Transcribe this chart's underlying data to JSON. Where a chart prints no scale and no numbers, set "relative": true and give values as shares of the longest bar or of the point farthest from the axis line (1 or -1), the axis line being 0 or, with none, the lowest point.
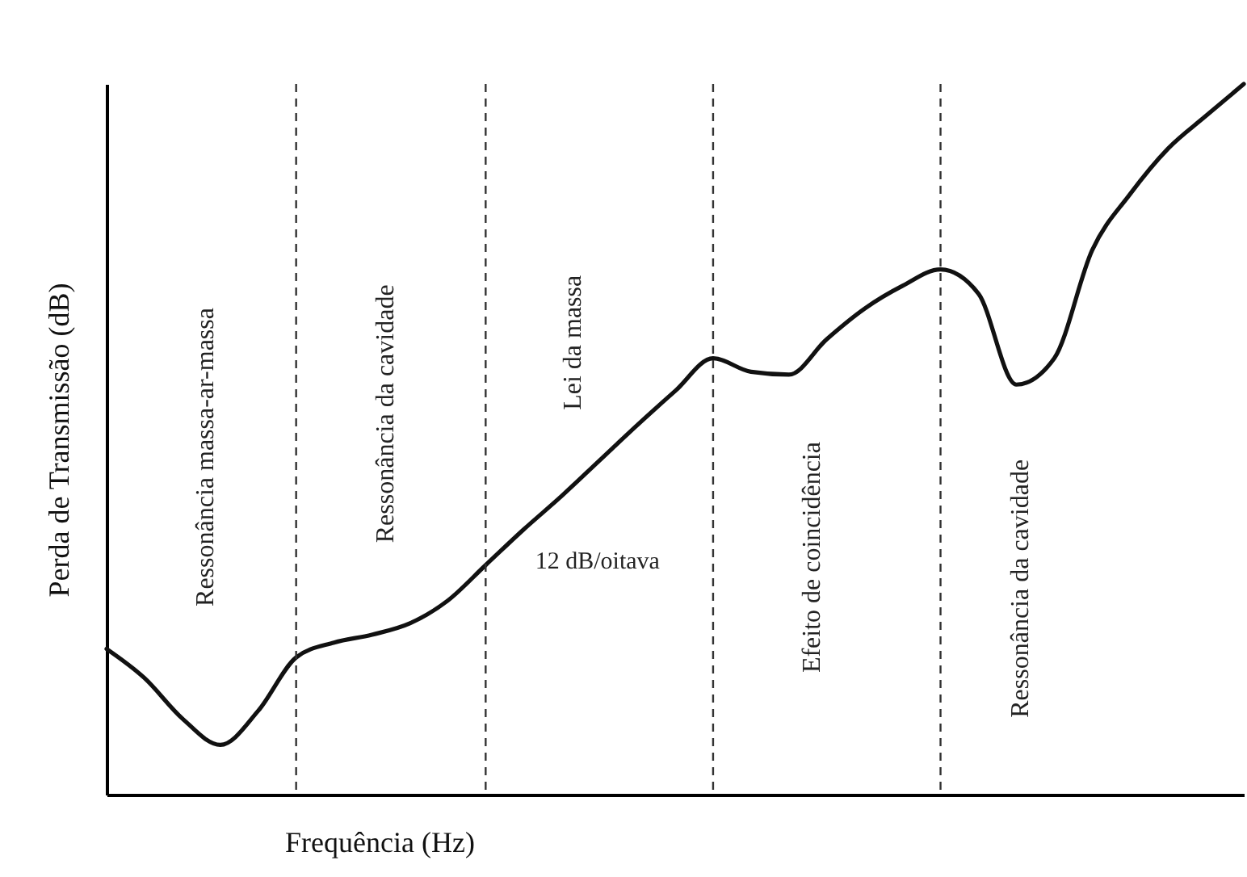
{
  "chart_data": {
    "type": "line",
    "relative": true,
    "grid": "x",
    "xlabel": "Frequência (Hz)",
    "ylabel": "Perda de Transmissão (dB)",
    "categories": [
      null,
      null,
      null,
      null,
      null,
      null,
      null,
      null,
      null,
      null,
      null,
      null,
      null,
      null,
      null,
      null,
      null,
      null,
      null,
      null,
      null,
      null,
      null,
      null,
      null,
      null,
      null,
      null,
      null,
      null,
      null
    ],
    "series": [
      {
        "color": "#111111",
        "values": [
          0.205,
          0.164,
          0.107,
          0.07,
          0.118,
          0.193,
          0.214,
          0.225,
          0.241,
          0.273,
          0.323,
          0.373,
          0.42,
          0.47,
          0.52,
          0.568,
          0.614,
          0.595,
          0.591,
          0.641,
          0.684,
          0.716,
          0.739,
          0.705,
          0.577,
          0.614,
          0.766,
          0.845,
          0.909,
          0.955,
          1.0
        ]
      }
    ],
    "annotations": [
      "Ressonância massa-ar-massa",
      "Ressonância da cavidade",
      "Lei da massa",
      "Efeito de coincidência",
      "Ressonância da cavidade",
      "12 dB/oitava"
    ]
  }
}
